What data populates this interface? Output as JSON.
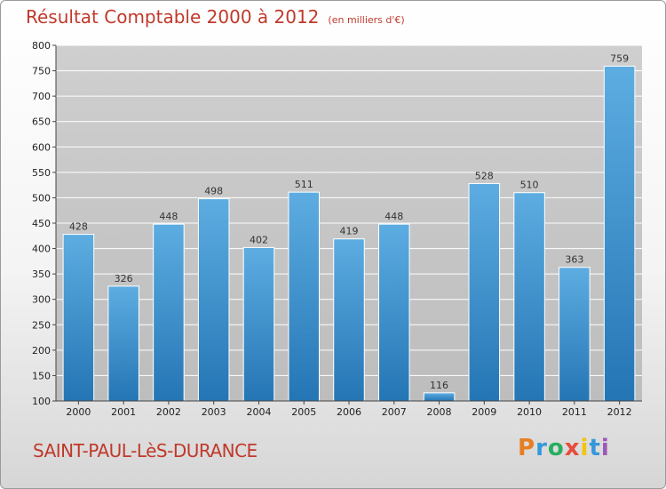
{
  "header": {
    "title": "Résultat Comptable 2000 à 2012",
    "subtitle": "(en milliers d'€)"
  },
  "footer": {
    "place": "SAINT-PAUL-LèS-DURANCE",
    "logo_text": "Proxiti",
    "logo_colors": [
      "#e67e22",
      "#3498db",
      "#27ae60",
      "#e74c3c",
      "#f1c40f",
      "#3498db",
      "#9b59b6"
    ]
  },
  "colors": {
    "bar_top": "#5dade2",
    "bar_bottom": "#2475b4",
    "plot_bg_top": "#cfcfcf",
    "plot_bg_bottom": "#bdbdbd",
    "grid": "#ffffff"
  },
  "chart_data": {
    "type": "bar",
    "title": "Résultat Comptable 2000 à 2012",
    "xlabel": "",
    "ylabel": "",
    "categories": [
      "2000",
      "2001",
      "2002",
      "2003",
      "2004",
      "2005",
      "2006",
      "2007",
      "2008",
      "2009",
      "2010",
      "2011",
      "2012"
    ],
    "values": [
      428,
      326,
      448,
      498,
      402,
      511,
      419,
      448,
      116,
      528,
      510,
      363,
      759
    ],
    "ylim": [
      100,
      800
    ],
    "yticks": [
      100,
      150,
      200,
      250,
      300,
      350,
      400,
      450,
      500,
      550,
      600,
      650,
      700,
      750,
      800
    ],
    "grid": true,
    "legend": "none"
  }
}
